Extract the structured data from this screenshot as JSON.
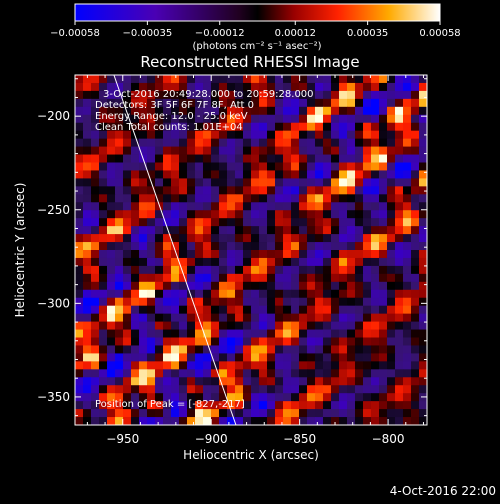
{
  "chart_data": {
    "type": "heatmap",
    "title": "Reconstructed RHESSI Image",
    "xlabel": "Heliocentric X (arcsec)",
    "ylabel": "Heliocentric Y (arcsec)",
    "xlim": [
      -977,
      -778
    ],
    "ylim": [
      -365,
      -178
    ],
    "x_ticks": [
      -950,
      -900,
      -850,
      -800
    ],
    "x_tick_labels": [
      "−950",
      "−900",
      "−850",
      "−800"
    ],
    "y_ticks": [
      -200,
      -250,
      -300,
      -350
    ],
    "y_tick_labels": [
      "−200",
      "−250",
      "−300",
      "−350"
    ],
    "colorbar": {
      "range": [
        -0.00058,
        0.00058
      ],
      "ticks": [
        -0.00058,
        -0.00035,
        -0.00012,
        0.00012,
        0.00035,
        0.00058
      ],
      "tick_labels": [
        "−0.00058",
        "−0.00035",
        "−0.00012",
        "0.00012",
        "0.00035",
        "0.00058"
      ],
      "units": "(photons cm⁻² s⁻¹ asec⁻²)",
      "colors": [
        "#0000ff",
        "#4400cc",
        "#000000",
        "#880000",
        "#ff2200",
        "#ffaa00",
        "#ffffff"
      ]
    },
    "limb_line": [
      [
        -955,
        -178
      ],
      [
        -886,
        -365
      ]
    ],
    "annotations": {
      "time": "3-Oct-2016 20:49:28.000 to 20:59:28.000",
      "detectors": "Detectors: 3F 5F 6F 7F 8F, Att 0",
      "energy": "Energy Range: 12.0 - 25.0 keV",
      "clean": "Clean    Total counts: 1.01E+04",
      "peak": "Position of Peak = [-827,-217]"
    }
  },
  "footer": {
    "date": "4-Oct-2016 22:00"
  },
  "colors": {
    "background": "#000000",
    "text": "#ffffff"
  }
}
